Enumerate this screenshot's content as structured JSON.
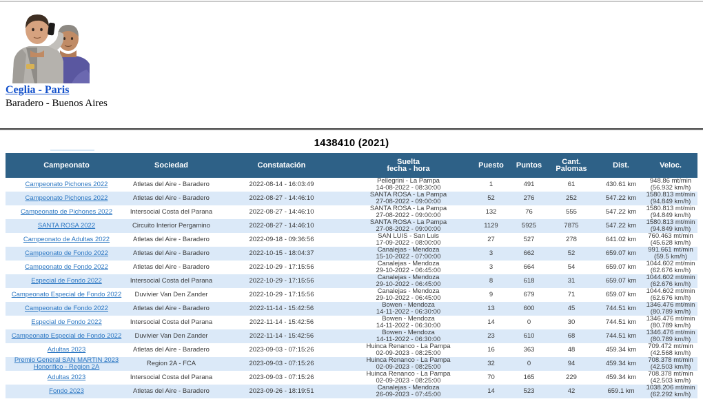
{
  "page": {
    "title": "1438410 (2021)",
    "profile": {
      "name_link": "Ceglia - Paris",
      "location": "Baradero - Buenos Aires"
    }
  },
  "colors": {
    "header_bg": "#2e6187",
    "row_alt_bg": "#dbe9f8",
    "table_link_blue": "#2a76c2",
    "profile_link_blue": "#1452cc",
    "separator_gray": "#515151",
    "top_line_gray": "#c9c9c9",
    "cell_text": "#3a3a3a"
  },
  "table": {
    "columns": [
      {
        "key": "campeonato",
        "label": "Campeonato"
      },
      {
        "key": "sociedad",
        "label": "Sociedad"
      },
      {
        "key": "constatacion",
        "label": "Constatación"
      },
      {
        "key": "suelta",
        "label": "Suelta",
        "label2": "fecha - hora"
      },
      {
        "key": "puesto",
        "label": "Puesto"
      },
      {
        "key": "puntos",
        "label": "Puntos"
      },
      {
        "key": "palomas",
        "label": "Cant.",
        "label2": "Palomas"
      },
      {
        "key": "dist",
        "label": "Dist."
      },
      {
        "key": "veloc",
        "label": "Veloc."
      }
    ],
    "rows": [
      {
        "campeonato": "Campeonato Pichones 2022",
        "sociedad": "Atletas del Aire - Baradero",
        "constatacion": "2022-08-14 - 16:03:49",
        "suelta1": "Pellegrini - La Pampa",
        "suelta2": "14-08-2022 - 08:30:00",
        "puesto": "1",
        "puntos": "491",
        "palomas": "61",
        "dist": "430.61 km",
        "veloc1": "948.86 mt/min",
        "veloc2": "(56.932 km/h)"
      },
      {
        "campeonato": "Campeonato Pichones 2022",
        "sociedad": "Atletas del Aire - Baradero",
        "constatacion": "2022-08-27 - 14:46:10",
        "suelta1": "SANTA ROSA - La Pampa",
        "suelta2": "27-08-2022 - 09:00:00",
        "puesto": "52",
        "puntos": "276",
        "palomas": "252",
        "dist": "547.22 km",
        "veloc1": "1580.813 mt/min",
        "veloc2": "(94.849 km/h)"
      },
      {
        "campeonato": "Campeonato de Pichones 2022",
        "sociedad": "Intersocial Costa del Parana",
        "constatacion": "2022-08-27 - 14:46:10",
        "suelta1": "SANTA ROSA - La Pampa",
        "suelta2": "27-08-2022 - 09:00:00",
        "puesto": "132",
        "puntos": "76",
        "palomas": "555",
        "dist": "547.22 km",
        "veloc1": "1580.813 mt/min",
        "veloc2": "(94.849 km/h)"
      },
      {
        "campeonato": "SANTA ROSA 2022",
        "sociedad": "Circuito Interior Pergamino",
        "constatacion": "2022-08-27 - 14:46:10",
        "suelta1": "SANTA ROSA - La Pampa",
        "suelta2": "27-08-2022 - 09:00:00",
        "puesto": "1129",
        "puntos": "5925",
        "palomas": "7875",
        "dist": "547.22 km",
        "veloc1": "1580.813 mt/min",
        "veloc2": "(94.849 km/h)"
      },
      {
        "campeonato": "Campeonato de Adultas 2022",
        "sociedad": "Atletas del Aire - Baradero",
        "constatacion": "2022-09-18 - 09:36:56",
        "suelta1": "SAN LUIS - San Luis",
        "suelta2": "17-09-2022 - 08:00:00",
        "puesto": "27",
        "puntos": "527",
        "palomas": "278",
        "dist": "641.02 km",
        "veloc1": "760.463 mt/min",
        "veloc2": "(45.628 km/h)"
      },
      {
        "campeonato": "Campeonato de Fondo 2022",
        "sociedad": "Atletas del Aire - Baradero",
        "constatacion": "2022-10-15 - 18:04:37",
        "suelta1": "Canalejas - Mendoza",
        "suelta2": "15-10-2022 - 07:00:00",
        "puesto": "3",
        "puntos": "662",
        "palomas": "52",
        "dist": "659.07 km",
        "veloc1": "991.661 mt/min",
        "veloc2": "(59.5 km/h)"
      },
      {
        "campeonato": "Campeonato de Fondo 2022",
        "sociedad": "Atletas del Aire - Baradero",
        "constatacion": "2022-10-29 - 17:15:56",
        "suelta1": "Canalejas - Mendoza",
        "suelta2": "29-10-2022 - 06:45:00",
        "puesto": "3",
        "puntos": "664",
        "palomas": "54",
        "dist": "659.07 km",
        "veloc1": "1044.602 mt/min",
        "veloc2": "(62.676 km/h)"
      },
      {
        "campeonato": "Especial de Fondo 2022",
        "sociedad": "Intersocial Costa del Parana",
        "constatacion": "2022-10-29 - 17:15:56",
        "suelta1": "Canalejas - Mendoza",
        "suelta2": "29-10-2022 - 06:45:00",
        "puesto": "8",
        "puntos": "618",
        "palomas": "31",
        "dist": "659.07 km",
        "veloc1": "1044.602 mt/min",
        "veloc2": "(62.676 km/h)"
      },
      {
        "campeonato": "Campeonato Especial de Fondo 2022",
        "sociedad": "Duvivier Van Den Zander",
        "constatacion": "2022-10-29 - 17:15:56",
        "suelta1": "Canalejas - Mendoza",
        "suelta2": "29-10-2022 - 06:45:00",
        "puesto": "9",
        "puntos": "679",
        "palomas": "71",
        "dist": "659.07 km",
        "veloc1": "1044.602 mt/min",
        "veloc2": "(62.676 km/h)"
      },
      {
        "campeonato": "Campeonato de Fondo 2022",
        "sociedad": "Atletas del Aire - Baradero",
        "constatacion": "2022-11-14 - 15:42:56",
        "suelta1": "Bowen - Mendoza",
        "suelta2": "14-11-2022 - 06:30:00",
        "puesto": "13",
        "puntos": "600",
        "palomas": "45",
        "dist": "744.51 km",
        "veloc1": "1346.476 mt/min",
        "veloc2": "(80.789 km/h)"
      },
      {
        "campeonato": "Especial de Fondo 2022",
        "sociedad": "Intersocial Costa del Parana",
        "constatacion": "2022-11-14 - 15:42:56",
        "suelta1": "Bowen - Mendoza",
        "suelta2": "14-11-2022 - 06:30:00",
        "puesto": "14",
        "puntos": "0",
        "palomas": "30",
        "dist": "744.51 km",
        "veloc1": "1346.476 mt/min",
        "veloc2": "(80.789 km/h)"
      },
      {
        "campeonato": "Campeonato Especial de Fondo 2022",
        "sociedad": "Duvivier Van Den Zander",
        "constatacion": "2022-11-14 - 15:42:56",
        "suelta1": "Bowen - Mendoza",
        "suelta2": "14-11-2022 - 06:30:00",
        "puesto": "23",
        "puntos": "610",
        "palomas": "68",
        "dist": "744.51 km",
        "veloc1": "1346.476 mt/min",
        "veloc2": "(80.789 km/h)"
      },
      {
        "campeonato": "Adultas 2023",
        "sociedad": "Atletas del Aire - Baradero",
        "constatacion": "2023-09-03 - 07:15:26",
        "suelta1": "Huinca Renanco - La Pampa",
        "suelta2": "02-09-2023 - 08:25:00",
        "puesto": "16",
        "puntos": "363",
        "palomas": "48",
        "dist": "459.34 km",
        "veloc1": "709.472 mt/min",
        "veloc2": "(42.568 km/h)"
      },
      {
        "campeonato": "Premio General SAN MARTIN 2023 Honorifico - Region 2A",
        "sociedad": "Region 2A - FCA",
        "constatacion": "2023-09-03 - 07:15:26",
        "suelta1": "Huinca Renanco - La Pampa",
        "suelta2": "02-09-2023 - 08:25:00",
        "puesto": "32",
        "puntos": "0",
        "palomas": "94",
        "dist": "459.34 km",
        "veloc1": "708.378 mt/min",
        "veloc2": "(42.503 km/h)"
      },
      {
        "campeonato": "Adultas 2023",
        "sociedad": "Intersocial Costa del Parana",
        "constatacion": "2023-09-03 - 07:15:26",
        "suelta1": "Huinca Renanco - La Pampa",
        "suelta2": "02-09-2023 - 08:25:00",
        "puesto": "70",
        "puntos": "165",
        "palomas": "229",
        "dist": "459.34 km",
        "veloc1": "708.378 mt/min",
        "veloc2": "(42.503 km/h)"
      },
      {
        "campeonato": "Fondo 2023",
        "sociedad": "Atletas del Aire - Baradero",
        "constatacion": "2023-09-26 - 18:19:51",
        "suelta1": "Canalejas - Mendoza",
        "suelta2": "26-09-2023 - 07:45:00",
        "puesto": "14",
        "puntos": "523",
        "palomas": "42",
        "dist": "659.1 km",
        "veloc1": "1038.206 mt/min",
        "veloc2": "(62.292 km/h)"
      }
    ]
  }
}
